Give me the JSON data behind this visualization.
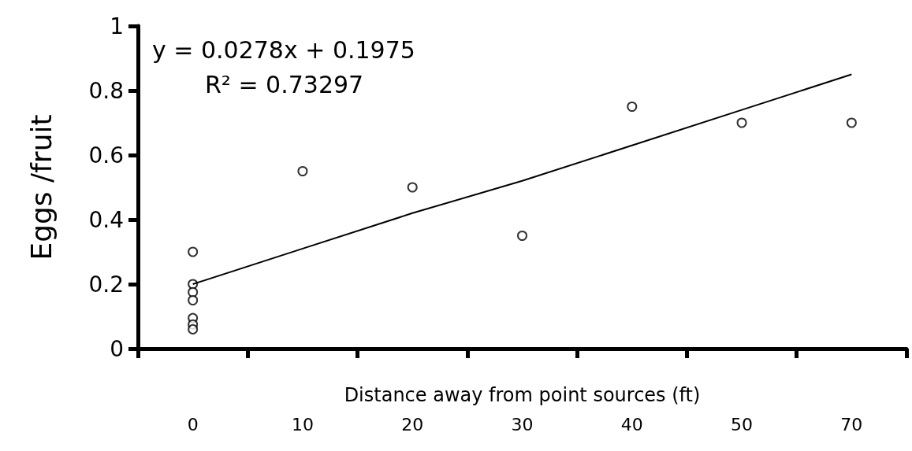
{
  "chart_data": {
    "type": "scatter",
    "ylabel": "Eggs /fruit",
    "xlabel": "Distance away from point sources (ft)",
    "categories": [
      "0",
      "10",
      "20",
      "30",
      "40",
      "50",
      "70"
    ],
    "ylim": [
      0,
      1
    ],
    "yticks": [
      0,
      0.2,
      0.4,
      0.6,
      0.8,
      1
    ],
    "grid": false,
    "marker": "circle",
    "series": [
      {
        "type": "scatter",
        "color": "#000000",
        "x": [
          "0",
          "0",
          "0",
          "0",
          "0",
          "0",
          "0",
          "10",
          "20",
          "30",
          "40",
          "50",
          "70"
        ],
        "values": [
          0.3,
          0.2,
          0.175,
          0.15,
          0.095,
          0.075,
          0.06,
          0.55,
          0.5,
          0.35,
          0.75,
          0.7,
          0.7
        ]
      },
      {
        "type": "line",
        "color": "#000000",
        "line_style": "solid",
        "marker": "none",
        "values": [
          0.2,
          0.31,
          0.42,
          0.52,
          0.63,
          0.74,
          0.85
        ]
      }
    ],
    "annotations": [
      "y = 0.0278x + 0.1975",
      "R² = 0.73297"
    ]
  }
}
